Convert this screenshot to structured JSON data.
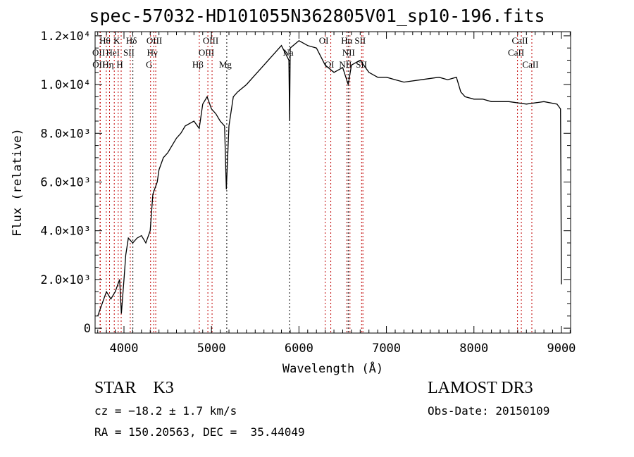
{
  "chart_data": {
    "type": "line",
    "title": "spec-57032-HD101055N362805V01_sp10-196.fits",
    "xlabel": "Wavelength (Å)",
    "ylabel": "Flux (relative)",
    "xlim": [
      3670,
      9105
    ],
    "ylim": [
      -200,
      12170
    ],
    "xticks": [
      {
        "v": 4000,
        "label": "4000"
      },
      {
        "v": 5000,
        "label": "5000"
      },
      {
        "v": 6000,
        "label": "6000"
      },
      {
        "v": 7000,
        "label": "7000"
      },
      {
        "v": 8000,
        "label": "8000"
      },
      {
        "v": 9000,
        "label": "9000"
      }
    ],
    "yticks": [
      {
        "v": 0,
        "label": "0"
      },
      {
        "v": 2000,
        "label": "2.0×10³"
      },
      {
        "v": 4000,
        "label": "4.0×10³"
      },
      {
        "v": 6000,
        "label": "6.0×10³"
      },
      {
        "v": 8000,
        "label": "8.0×10³"
      },
      {
        "v": 10000,
        "label": "1.0×10⁴"
      },
      {
        "v": 12000,
        "label": "1.2×10⁴"
      }
    ],
    "grid": false,
    "series": [
      {
        "name": "spectrum",
        "x": [
          3700,
          3750,
          3800,
          3850,
          3900,
          3950,
          3970,
          4000,
          4020,
          4050,
          4100,
          4150,
          4200,
          4250,
          4300,
          4330,
          4380,
          4400,
          4450,
          4500,
          4550,
          4600,
          4650,
          4700,
          4750,
          4800,
          4860,
          4900,
          4950,
          5000,
          5050,
          5100,
          5150,
          5170,
          5200,
          5250,
          5300,
          5400,
          5500,
          5600,
          5700,
          5800,
          5885,
          5893,
          5900,
          6000,
          6100,
          6200,
          6300,
          6400,
          6500,
          6563,
          6600,
          6700,
          6800,
          6900,
          7000,
          7100,
          7200,
          7400,
          7600,
          7700,
          7800,
          7850,
          7900,
          8000,
          8100,
          8200,
          8400,
          8600,
          8800,
          8950,
          8990,
          9000
        ],
        "y": [
          500,
          1000,
          1500,
          1200,
          1500,
          2000,
          600,
          2000,
          3000,
          3700,
          3500,
          3700,
          3800,
          3500,
          4000,
          5500,
          6000,
          6500,
          7000,
          7200,
          7500,
          7800,
          8000,
          8300,
          8400,
          8500,
          8200,
          9200,
          9500,
          9000,
          8800,
          8500,
          8300,
          5700,
          8300,
          9500,
          9700,
          10000,
          10400,
          10800,
          11200,
          11600,
          11000,
          8500,
          11500,
          11800,
          11600,
          11500,
          10800,
          10500,
          10700,
          10000,
          10800,
          11000,
          10500,
          10300,
          10300,
          10200,
          10100,
          10200,
          10300,
          10200,
          10300,
          9700,
          9500,
          9400,
          9400,
          9300,
          9300,
          9200,
          9300,
          9200,
          9000,
          1800
        ]
      }
    ],
    "lines": [
      {
        "w": 3727,
        "label": "OII",
        "row": 2,
        "color": "#c00000"
      },
      {
        "w": 3729,
        "label": "OII",
        "row": 3,
        "color": "#c00000"
      },
      {
        "w": 3798,
        "label": "Hθ",
        "row": 1,
        "color": "#c00000"
      },
      {
        "w": 3835,
        "label": "Hη",
        "row": 3,
        "color": "#c00000"
      },
      {
        "w": 3889,
        "label": "HeI",
        "row": 2,
        "color": "#c00000"
      },
      {
        "w": 3934,
        "label": "K",
        "row": 1,
        "color": "#c00000"
      },
      {
        "w": 3968,
        "label": "H",
        "row": 3,
        "color": "#c00000"
      },
      {
        "w": 4072,
        "label": "SII",
        "row": 2,
        "color": "#c00000"
      },
      {
        "w": 4102,
        "label": "Hδ",
        "row": 1,
        "color": "#000000"
      },
      {
        "w": 4304,
        "label": "G",
        "row": 3,
        "color": "#c00000"
      },
      {
        "w": 4340,
        "label": "Hγ",
        "row": 2,
        "color": "#c00000"
      },
      {
        "w": 4363,
        "label": "OIII",
        "row": 1,
        "color": "#c00000"
      },
      {
        "w": 4861,
        "label": "Hβ",
        "row": 3,
        "color": "#c00000"
      },
      {
        "w": 4959,
        "label": "OIII",
        "row": 2,
        "color": "#c00000"
      },
      {
        "w": 5007,
        "label": "OIII",
        "row": 1,
        "color": "#c00000"
      },
      {
        "w": 5175,
        "label": "Mg",
        "row": 3,
        "color": "#000000"
      },
      {
        "w": 5893,
        "label": "Na",
        "row": 2,
        "color": "#000000"
      },
      {
        "w": 6300,
        "label": "OI",
        "row": 1,
        "color": "#c00000"
      },
      {
        "w": 6364,
        "label": "OI",
        "row": 3,
        "color": "#c00000"
      },
      {
        "w": 6548,
        "label": "NII",
        "row": 3,
        "color": "#c00000"
      },
      {
        "w": 6563,
        "label": "Hα",
        "row": 1,
        "color": "#000000"
      },
      {
        "w": 6583,
        "label": "NII",
        "row": 2,
        "color": "#c00000"
      },
      {
        "w": 6716,
        "label": "SII",
        "row": 1,
        "color": "#c00000"
      },
      {
        "w": 6731,
        "label": "SII",
        "row": 3,
        "color": "#c00000"
      },
      {
        "w": 8498,
        "label": "CaII",
        "row": 2,
        "color": "#c00000"
      },
      {
        "w": 8542,
        "label": "CaII",
        "row": 1,
        "color": "#c00000"
      },
      {
        "w": 8662,
        "label": "CaII",
        "row": 3,
        "color": "#c00000"
      }
    ]
  },
  "info": {
    "class": "STAR    K3",
    "cz": "cz = −18.2 ± 1.7 km/s",
    "radec": "RA = 150.20563, DEC =  35.44049",
    "survey": "LAMOST DR3",
    "obsdate": "Obs-Date: 20150109"
  }
}
